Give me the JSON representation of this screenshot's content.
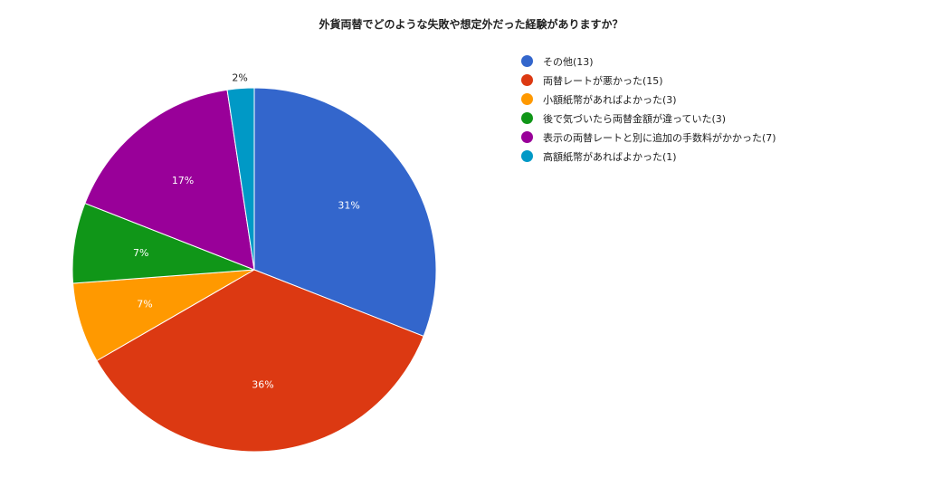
{
  "chart_data": {
    "type": "pie",
    "title": "外貨両替でどのような失敗や想定外だった経験がありますか？",
    "categories": [
      "その他(13)",
      "両替レートが悪かった(15)",
      "小額紙幣があればよかった(3)",
      "後で気づいたら両替金額が違っていた(3)",
      "表示の両替レートと別に追加の手数料がかかった(7)",
      "高額紙幣があればよかった(1)"
    ],
    "values": [
      13,
      15,
      3,
      3,
      7,
      1
    ],
    "percent_labels": [
      "31%",
      "36%",
      "7%",
      "7%",
      "17%",
      "2%"
    ],
    "colors": [
      "#3366cc",
      "#dc3912",
      "#ff9900",
      "#109618",
      "#990099",
      "#0099c6"
    ],
    "legend_position": "right"
  }
}
